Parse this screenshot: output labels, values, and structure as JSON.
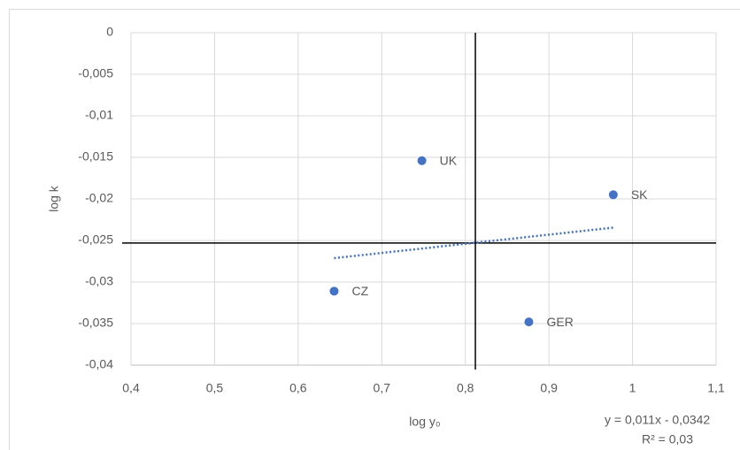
{
  "chart_data": {
    "type": "scatter",
    "x_label": "log y₀",
    "y_label": "log k",
    "series": [
      {
        "name": "log k",
        "color": "#4472c4",
        "x": [
          0.748,
          0.977,
          0.643,
          0.876
        ],
        "values": [
          -0.0154,
          -0.0195,
          -0.0311,
          -0.0348
        ],
        "labels": [
          "UK",
          "SK",
          "CZ",
          "GER"
        ]
      }
    ],
    "xlim": [
      0.4,
      1.1
    ],
    "ylim": [
      -0.04,
      0
    ],
    "xticks": [
      {
        "value": 0.4,
        "label": "0,4"
      },
      {
        "value": 0.5,
        "label": "0,5"
      },
      {
        "value": 0.6,
        "label": "0,6"
      },
      {
        "value": 0.7,
        "label": "0,7"
      },
      {
        "value": 0.8,
        "label": "0,8"
      },
      {
        "value": 0.9,
        "label": "0,9"
      },
      1,
      {
        "value": 1.1,
        "label": "1,1"
      }
    ],
    "yticks": [
      0,
      {
        "value": -0.005,
        "label": "-0,005"
      },
      {
        "value": -0.01,
        "label": "-0,01"
      },
      {
        "value": -0.015,
        "label": "-0,015"
      },
      {
        "value": -0.02,
        "label": "-0,02"
      },
      {
        "value": -0.025,
        "label": "-0,025"
      },
      {
        "value": -0.03,
        "label": "-0,03"
      },
      {
        "value": -0.035,
        "label": "-0,035"
      },
      {
        "value": -0.04,
        "label": "-0,04"
      }
    ],
    "grid": true,
    "reference_lines": {
      "x": 0.812,
      "y": -0.0253
    },
    "trendline": {
      "slope": 0.011,
      "intercept": -0.0342,
      "equation": "y = 0,011x - 0,0342",
      "r2": "R² = 0,03"
    }
  }
}
